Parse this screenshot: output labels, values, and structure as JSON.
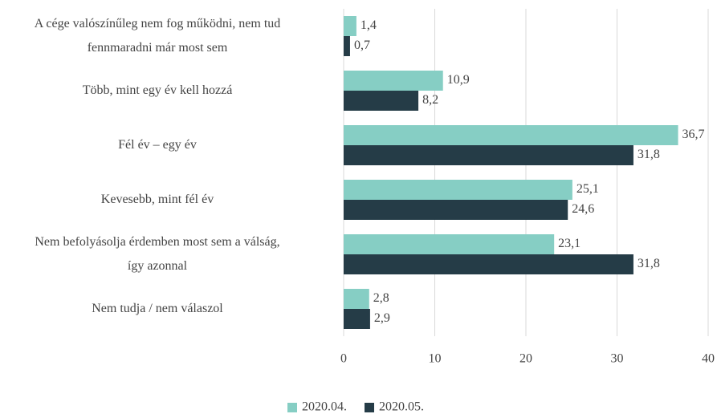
{
  "chart_data": {
    "type": "bar",
    "orientation": "horizontal",
    "categories": [
      "A cége valószínűleg nem fog működni, nem tud\nfennmaradni már most sem",
      "Több, mint egy év kell hozzá",
      "Fél év – egy év",
      "Kevesebb, mint fél év",
      "Nem befolyásolja érdemben most sem a válság,\nígy azonnal",
      "Nem tudja / nem válaszol"
    ],
    "series": [
      {
        "name": "2020.04.",
        "color": "#86cec4",
        "values": [
          1.4,
          10.9,
          36.7,
          25.1,
          23.1,
          2.8
        ],
        "value_labels": [
          "1,4",
          "10,9",
          "36,7",
          "25,1",
          "23,1",
          "2,8"
        ]
      },
      {
        "name": "2020.05.",
        "color": "#253c47",
        "values": [
          0.7,
          8.2,
          31.8,
          24.6,
          31.8,
          2.9
        ],
        "value_labels": [
          "0,7",
          "8,2",
          "31,8",
          "24,6",
          "31,8",
          "2,9"
        ]
      }
    ],
    "xlim": [
      0,
      40
    ],
    "xticks": [
      0,
      10,
      20,
      30,
      40
    ],
    "grid": true,
    "legend": "bottom"
  }
}
